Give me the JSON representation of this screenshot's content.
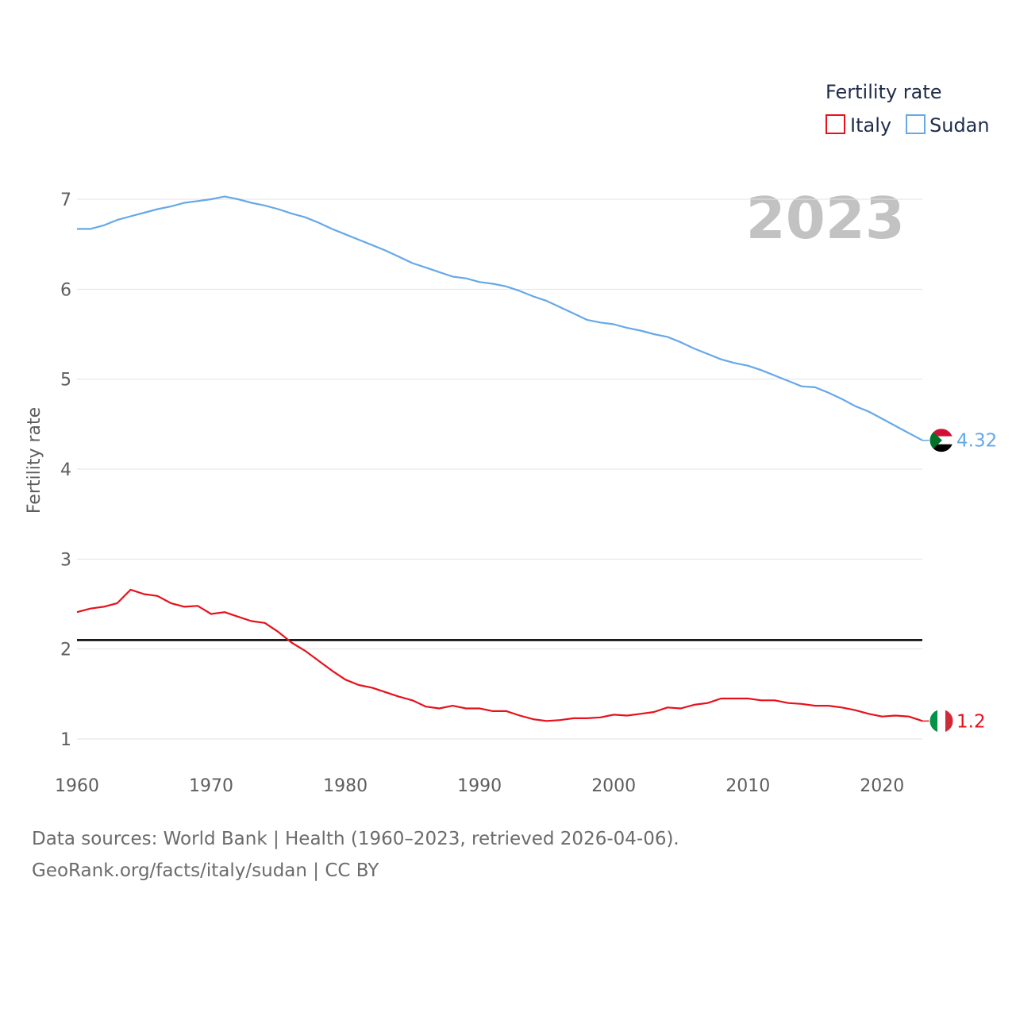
{
  "chart_data": {
    "type": "line",
    "title": "",
    "year_display": "2023",
    "legend": {
      "title": "Fertility rate",
      "position": "top-right",
      "items": [
        "Italy",
        "Sudan"
      ]
    },
    "ylabel": "Fertility rate",
    "xlabel": "",
    "xlim": [
      1960,
      2023
    ],
    "ylim": [
      0.9,
      7.2
    ],
    "yticks": [
      1,
      2,
      3,
      4,
      5,
      6,
      7
    ],
    "xticks": [
      1960,
      1970,
      1980,
      1990,
      2000,
      2010,
      2020
    ],
    "reference_line": {
      "value": 2.1,
      "color": "#000000",
      "label": ""
    },
    "x": [
      1960,
      1961,
      1962,
      1963,
      1964,
      1965,
      1966,
      1967,
      1968,
      1969,
      1970,
      1971,
      1972,
      1973,
      1974,
      1975,
      1976,
      1977,
      1978,
      1979,
      1980,
      1981,
      1982,
      1983,
      1984,
      1985,
      1986,
      1987,
      1988,
      1989,
      1990,
      1991,
      1992,
      1993,
      1994,
      1995,
      1996,
      1997,
      1998,
      1999,
      2000,
      2001,
      2002,
      2003,
      2004,
      2005,
      2006,
      2007,
      2008,
      2009,
      2010,
      2011,
      2012,
      2013,
      2014,
      2015,
      2016,
      2017,
      2018,
      2019,
      2020,
      2021,
      2022,
      2023
    ],
    "series": [
      {
        "name": "Italy",
        "color": "#e8101a",
        "end_label": "1.2",
        "flag": "italy-flag",
        "values": [
          2.41,
          2.45,
          2.47,
          2.51,
          2.66,
          2.61,
          2.59,
          2.51,
          2.47,
          2.48,
          2.39,
          2.41,
          2.36,
          2.31,
          2.29,
          2.19,
          2.07,
          1.98,
          1.87,
          1.76,
          1.66,
          1.6,
          1.57,
          1.52,
          1.47,
          1.43,
          1.36,
          1.34,
          1.37,
          1.34,
          1.34,
          1.31,
          1.31,
          1.26,
          1.22,
          1.2,
          1.21,
          1.23,
          1.23,
          1.24,
          1.27,
          1.26,
          1.28,
          1.3,
          1.35,
          1.34,
          1.38,
          1.4,
          1.45,
          1.45,
          1.45,
          1.43,
          1.43,
          1.4,
          1.39,
          1.37,
          1.37,
          1.35,
          1.32,
          1.28,
          1.25,
          1.26,
          1.25,
          1.2
        ]
      },
      {
        "name": "Sudan",
        "color": "#66a8e8",
        "end_label": "4.32",
        "flag": "sudan-flag",
        "values": [
          6.67,
          6.67,
          6.71,
          6.77,
          6.81,
          6.85,
          6.89,
          6.92,
          6.96,
          6.98,
          7.0,
          7.03,
          7.0,
          6.96,
          6.93,
          6.89,
          6.84,
          6.8,
          6.74,
          6.67,
          6.61,
          6.55,
          6.49,
          6.43,
          6.36,
          6.29,
          6.24,
          6.19,
          6.14,
          6.12,
          6.08,
          6.06,
          6.03,
          5.98,
          5.92,
          5.87,
          5.8,
          5.73,
          5.66,
          5.63,
          5.61,
          5.57,
          5.54,
          5.5,
          5.47,
          5.41,
          5.34,
          5.28,
          5.22,
          5.18,
          5.15,
          5.1,
          5.04,
          4.98,
          4.92,
          4.91,
          4.85,
          4.78,
          4.7,
          4.64,
          4.56,
          4.48,
          4.4,
          4.32
        ]
      }
    ]
  },
  "footer": {
    "line1": "Data sources: World Bank | Health (1960–2023, retrieved 2026-04-06).",
    "line2": "GeoRank.org/facts/italy/sudan | CC BY"
  }
}
